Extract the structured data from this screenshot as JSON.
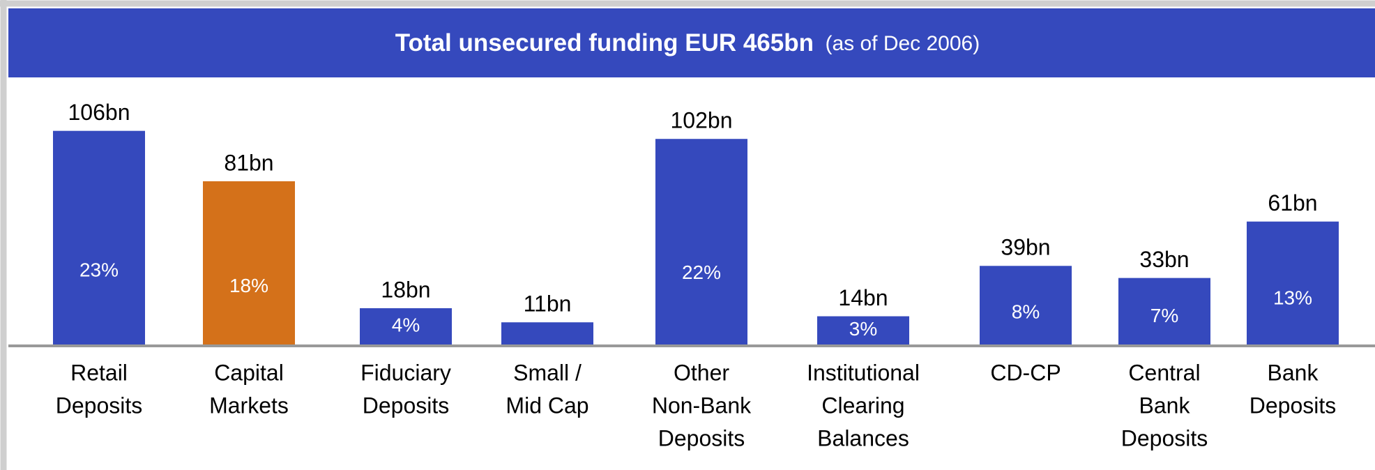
{
  "chart_data": {
    "type": "bar",
    "title": "Total unsecured funding EUR 465bn",
    "subtitle": "(as of Dec 2006)",
    "categories": [
      [
        "Retail",
        "Deposits"
      ],
      [
        "Capital",
        "Markets"
      ],
      [
        "Fiduciary",
        "Deposits"
      ],
      [
        "Small /",
        "Mid Cap"
      ],
      [
        "Other",
        "Non-Bank",
        "Deposits"
      ],
      [
        "Institutional",
        "Clearing",
        "Balances"
      ],
      [
        "CD-CP"
      ],
      [
        "Central",
        "Bank",
        "Deposits"
      ],
      [
        "Bank",
        "Deposits"
      ]
    ],
    "values": [
      106,
      81,
      18,
      11,
      102,
      14,
      39,
      33,
      61
    ],
    "value_labels": [
      "106bn",
      "81bn",
      "18bn",
      "11bn",
      "102bn",
      "14bn",
      "39bn",
      "33bn",
      "61bn"
    ],
    "shares": [
      23,
      18,
      4,
      null,
      22,
      3,
      8,
      7,
      13
    ],
    "share_labels": [
      "23%",
      "18%",
      "4%",
      null,
      "22%",
      "3%",
      "8%",
      "7%",
      "13%"
    ],
    "colors": [
      "#3549bd",
      "#d4711a",
      "#3549bd",
      "#3549bd",
      "#3549bd",
      "#3549bd",
      "#3549bd",
      "#3549bd",
      "#3549bd"
    ]
  }
}
